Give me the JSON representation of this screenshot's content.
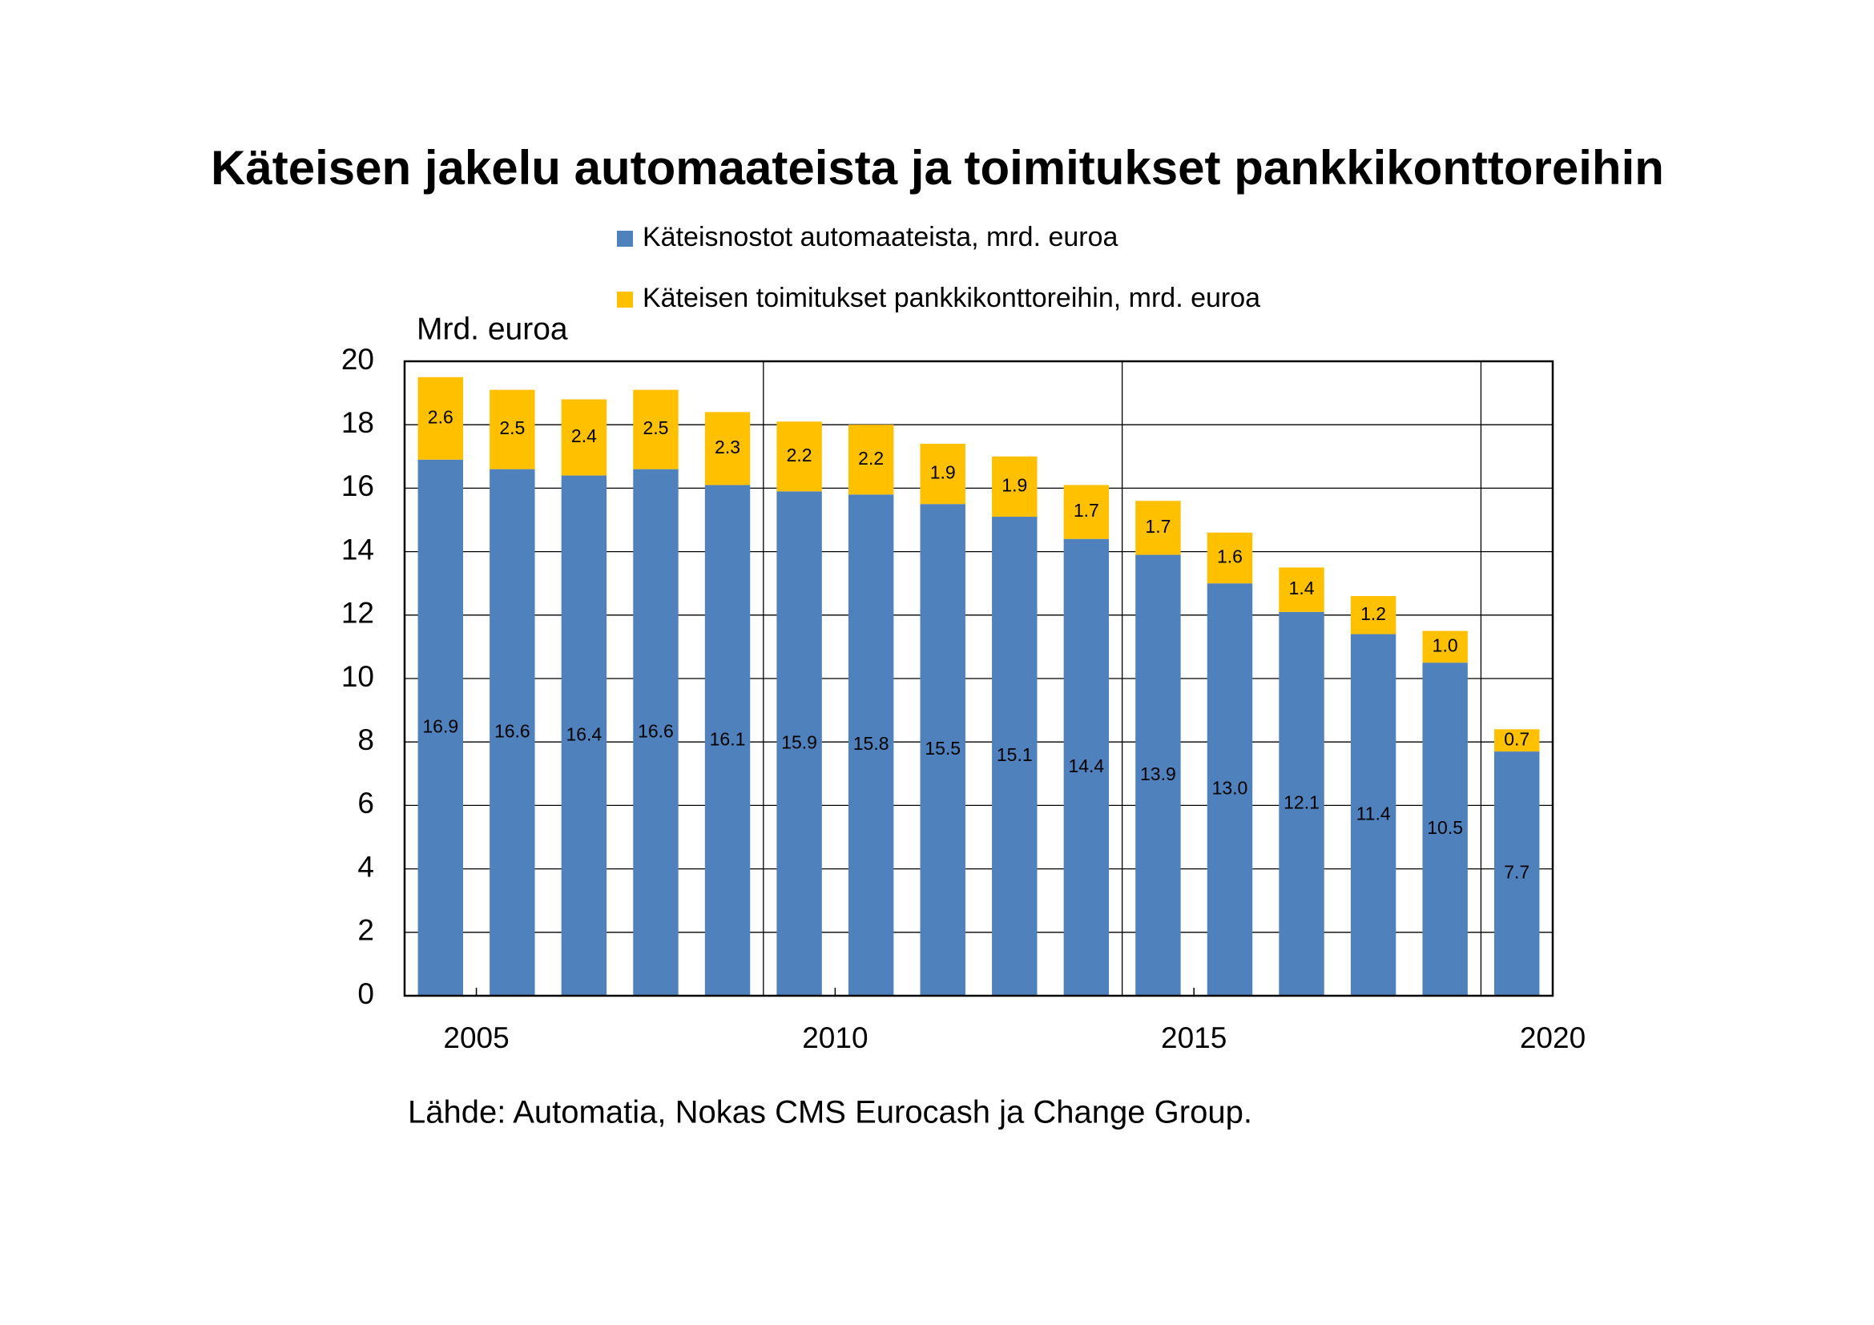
{
  "chart_data": {
    "type": "stacked_bar",
    "title": "Käteisen jakelu automaateista ja toimitukset pankkikonttoreihin",
    "y_label": "Mrd. euroa",
    "source": "Lähde: Automatia, Nokas CMS Eurocash ja Change Group.",
    "x": [
      2005,
      2006,
      2007,
      2008,
      2009,
      2010,
      2011,
      2012,
      2013,
      2014,
      2015,
      2016,
      2017,
      2018,
      2019,
      2020
    ],
    "series": [
      {
        "name": "Käteisnostot automaateista, mrd. euroa",
        "color": "#4f81bd",
        "values": [
          16.9,
          16.6,
          16.4,
          16.6,
          16.1,
          15.9,
          15.8,
          15.5,
          15.1,
          14.4,
          13.9,
          13.0,
          12.1,
          11.4,
          10.5,
          7.7
        ],
        "value_labels": [
          "16.9",
          "16.6",
          "16.4",
          "16.6",
          "16.1",
          "15.9",
          "15.8",
          "15.5",
          "15.1",
          "14.4",
          "13.9",
          "13.0",
          "12.1",
          "11.4",
          "10.5",
          "7.7"
        ]
      },
      {
        "name": "Käteisen toimitukset pankkikonttoreihin, mrd. euroa",
        "color": "#ffc000",
        "values": [
          2.6,
          2.5,
          2.4,
          2.5,
          2.3,
          2.2,
          2.2,
          1.9,
          1.9,
          1.7,
          1.7,
          1.6,
          1.4,
          1.2,
          1.0,
          0.7
        ],
        "value_labels": [
          "2.6",
          "2.5",
          "2.4",
          "2.5",
          "2.3",
          "2.2",
          "2.2",
          "1.9",
          "1.9",
          "1.7",
          "1.7",
          "1.6",
          "1.4",
          "1.2",
          "1.0",
          "0.7"
        ]
      }
    ],
    "xlim": [
      2004,
      2020
    ],
    "xticks": [
      2005,
      2010,
      2015,
      2020
    ],
    "x_grid_lines": [
      2009,
      2014,
      2019
    ],
    "ylim": [
      0,
      20
    ],
    "yticks": [
      0,
      2,
      4,
      6,
      8,
      10,
      12,
      14,
      16,
      18,
      20
    ],
    "grid": true
  }
}
